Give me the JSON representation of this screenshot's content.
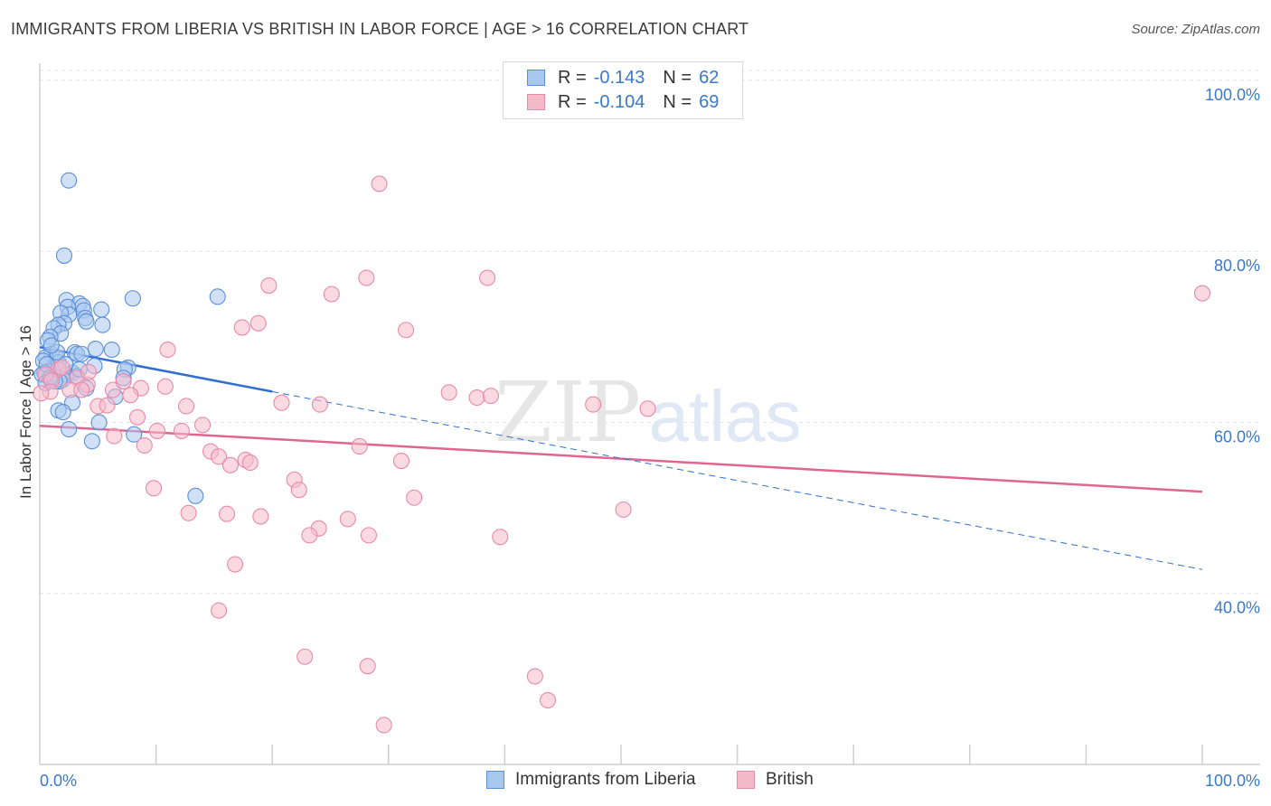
{
  "title": "IMMIGRANTS FROM LIBERIA VS BRITISH IN LABOR FORCE | AGE > 16 CORRELATION CHART",
  "source": "Source: ZipAtlas.com",
  "colors": {
    "blue_fill": "#a9c8f0",
    "blue_stroke": "#5b8fd6",
    "blue_line": "#2f6fd0",
    "pink_fill": "#f5b9cc",
    "pink_stroke": "#e78aa8",
    "pink_line": "#e0658f",
    "accent_text": "#3a78c9"
  },
  "legend": {
    "r_label": "R =",
    "n_label": "N =",
    "series": [
      {
        "r": "-0.143",
        "n": "62"
      },
      {
        "r": "-0.104",
        "n": "69"
      }
    ]
  },
  "watermark": {
    "zip": "ZIP",
    "atlas": "atlas"
  },
  "chart_data": {
    "type": "scatter",
    "title": "IMMIGRANTS FROM LIBERIA VS BRITISH IN LABOR FORCE | AGE > 16 CORRELATION CHART",
    "xlabel": "",
    "ylabel": "In Labor Force | Age > 16",
    "xlim": [
      0,
      100
    ],
    "ylim": [
      20,
      102
    ],
    "x_tick_labels": [
      "0.0%",
      "100.0%"
    ],
    "y_ticks": [
      40,
      60,
      80,
      100
    ],
    "y_tick_labels": [
      "40.0%",
      "60.0%",
      "80.0%",
      "100.0%"
    ],
    "grid": true,
    "series": [
      {
        "name": "Immigrants from Liberia",
        "r": -0.143,
        "n": 62,
        "trend": {
          "x": [
            0,
            20
          ],
          "y": [
            68.8,
            63.6
          ]
        },
        "trend_dashed": {
          "x": [
            20,
            100
          ],
          "y": [
            63.6,
            42.8
          ]
        },
        "points": [
          [
            2.5,
            88.3
          ],
          [
            2.1,
            79.5
          ],
          [
            8,
            74.5
          ],
          [
            15.3,
            74.7
          ],
          [
            2.3,
            74.3
          ],
          [
            3.4,
            73.9
          ],
          [
            3.7,
            73.6
          ],
          [
            2.4,
            73.5
          ],
          [
            5.3,
            73.2
          ],
          [
            3.8,
            73.1
          ],
          [
            2.5,
            72.6
          ],
          [
            1.8,
            72.8
          ],
          [
            3.9,
            72.2
          ],
          [
            2.1,
            71.6
          ],
          [
            1.6,
            71.4
          ],
          [
            1.2,
            71.0
          ],
          [
            4.0,
            71.8
          ],
          [
            5.4,
            71.4
          ],
          [
            1.8,
            70.4
          ],
          [
            0.9,
            70.0
          ],
          [
            0.7,
            69.6
          ],
          [
            4.8,
            68.6
          ],
          [
            6.2,
            68.5
          ],
          [
            3.0,
            68.2
          ],
          [
            3.2,
            68.0
          ],
          [
            1.0,
            68.0
          ],
          [
            1.4,
            67.6
          ],
          [
            0.5,
            67.6
          ],
          [
            0.3,
            67.2
          ],
          [
            1.6,
            67.0
          ],
          [
            4.7,
            66.6
          ],
          [
            7.6,
            66.4
          ],
          [
            7.3,
            66.2
          ],
          [
            0.8,
            66.0
          ],
          [
            2.8,
            65.8
          ],
          [
            0.4,
            65.8
          ],
          [
            2.3,
            65.6
          ],
          [
            3.2,
            65.4
          ],
          [
            7.2,
            65.2
          ],
          [
            1.1,
            65.0
          ],
          [
            2.0,
            65.0
          ],
          [
            1.7,
            64.8
          ],
          [
            4.0,
            64.0
          ],
          [
            6.5,
            63.0
          ],
          [
            2.8,
            62.3
          ],
          [
            1.6,
            61.4
          ],
          [
            2.0,
            61.2
          ],
          [
            5.1,
            60.0
          ],
          [
            2.5,
            59.2
          ],
          [
            8.1,
            58.6
          ],
          [
            4.5,
            57.8
          ],
          [
            13.4,
            51.4
          ],
          [
            0.2,
            65.6
          ],
          [
            0.5,
            64.6
          ],
          [
            1.3,
            64.8
          ],
          [
            3.4,
            66.2
          ],
          [
            0.6,
            66.8
          ],
          [
            1.5,
            68.2
          ],
          [
            2.2,
            66.8
          ],
          [
            1.0,
            69.0
          ],
          [
            3.6,
            68.0
          ],
          [
            0.9,
            65.2
          ]
        ]
      },
      {
        "name": "British",
        "r": -0.104,
        "n": 69,
        "trend": {
          "x": [
            0,
            100
          ],
          "y": [
            59.6,
            51.9
          ]
        },
        "points": [
          [
            29.2,
            87.9
          ],
          [
            28.1,
            76.9
          ],
          [
            38.5,
            76.9
          ],
          [
            19.7,
            76.0
          ],
          [
            25.1,
            75.0
          ],
          [
            100,
            75.1
          ],
          [
            18.8,
            71.6
          ],
          [
            17.4,
            71.1
          ],
          [
            31.5,
            70.8
          ],
          [
            11,
            68.5
          ],
          [
            8.7,
            64.0
          ],
          [
            10.8,
            64.2
          ],
          [
            6.3,
            63.8
          ],
          [
            7.2,
            64.8
          ],
          [
            4.1,
            64.4
          ],
          [
            3.2,
            65.2
          ],
          [
            1.6,
            66.2
          ],
          [
            4.2,
            65.9
          ],
          [
            0.5,
            65.6
          ],
          [
            1.0,
            64.9
          ],
          [
            0.9,
            63.6
          ],
          [
            2.6,
            63.8
          ],
          [
            5.0,
            61.9
          ],
          [
            7.8,
            63.2
          ],
          [
            12.6,
            61.9
          ],
          [
            20.8,
            62.3
          ],
          [
            24.1,
            62.1
          ],
          [
            35.2,
            63.5
          ],
          [
            37.6,
            62.9
          ],
          [
            38.8,
            63.1
          ],
          [
            47.6,
            62.1
          ],
          [
            52.3,
            61.6
          ],
          [
            5.8,
            62.0
          ],
          [
            8.4,
            60.6
          ],
          [
            14.0,
            59.7
          ],
          [
            10.1,
            59.0
          ],
          [
            12.2,
            59.0
          ],
          [
            17.7,
            55.6
          ],
          [
            9.0,
            57.3
          ],
          [
            14.7,
            56.6
          ],
          [
            6.4,
            58.4
          ],
          [
            15.4,
            56.0
          ],
          [
            16.4,
            55.0
          ],
          [
            18.1,
            55.3
          ],
          [
            27.5,
            57.2
          ],
          [
            31.1,
            55.5
          ],
          [
            21.9,
            53.3
          ],
          [
            22.3,
            52.1
          ],
          [
            32.2,
            51.2
          ],
          [
            9.8,
            52.3
          ],
          [
            12.8,
            49.4
          ],
          [
            16.1,
            49.3
          ],
          [
            19.0,
            49.0
          ],
          [
            24.0,
            47.6
          ],
          [
            23.2,
            46.8
          ],
          [
            26.5,
            48.7
          ],
          [
            28.3,
            46.8
          ],
          [
            39.6,
            46.6
          ],
          [
            50.2,
            49.8
          ],
          [
            16.8,
            43.4
          ],
          [
            15.4,
            38.0
          ],
          [
            22.8,
            32.6
          ],
          [
            28.2,
            31.5
          ],
          [
            42.6,
            30.3
          ],
          [
            43.7,
            27.5
          ],
          [
            29.6,
            24.6
          ],
          [
            0.1,
            63.4
          ],
          [
            1.9,
            66.4
          ],
          [
            3.6,
            63.8
          ]
        ]
      }
    ]
  }
}
